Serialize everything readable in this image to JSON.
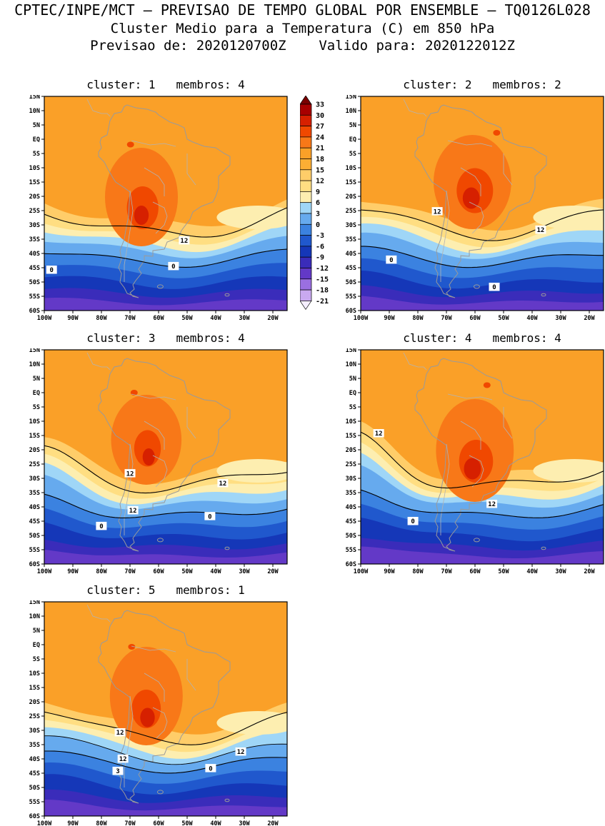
{
  "header": {
    "line1": "CPTEC/INPE/MCT — PREVISAO DE TEMPO GLOBAL POR ENSEMBLE — TQ0126L028",
    "line2": "Cluster Medio para a Temperatura (C) em 850 hPa",
    "line3": "Previsao de: 2020120700Z    Valido para: 2020122012Z"
  },
  "chart_data": {
    "type": "heatmap",
    "subtype": "filled-contour-temperature-maps-ensemble-clusters",
    "title": "Cluster Medio para a Temperatura (C) em 850 hPa",
    "model": "CPTEC/INPE/MCT - PREVISAO DE TEMPO GLOBAL POR ENSEMBLE - TQ0126L028",
    "init_time": "2020120700Z",
    "valid_time": "2020122012Z",
    "units": "C",
    "level": "850 hPa",
    "region": {
      "lon_range": [
        "100W",
        "15W"
      ],
      "lat_range": [
        "15N",
        "60S"
      ]
    },
    "lat_ticks": [
      "15N",
      "10N",
      "5N",
      "EQ",
      "5S",
      "10S",
      "15S",
      "20S",
      "25S",
      "30S",
      "35S",
      "40S",
      "45S",
      "50S",
      "55S",
      "60S"
    ],
    "lon_ticks": [
      "100W",
      "90W",
      "80W",
      "70W",
      "60W",
      "50W",
      "40W",
      "30W",
      "20W"
    ],
    "panels": [
      {
        "cluster": 1,
        "membros": 4,
        "title": "cluster: 1   membros: 4",
        "contour_labels": [
          {
            "t": "12",
            "x": 0.576,
            "y": 0.673
          },
          {
            "t": "0",
            "x": 0.03,
            "y": 0.81
          },
          {
            "t": "0",
            "x": 0.532,
            "y": 0.793
          }
        ]
      },
      {
        "cluster": 2,
        "membros": 2,
        "title": "cluster: 2   membros: 2",
        "contour_labels": [
          {
            "t": "12",
            "x": 0.315,
            "y": 0.537
          },
          {
            "t": "12",
            "x": 0.741,
            "y": 0.623
          },
          {
            "t": "0",
            "x": 0.126,
            "y": 0.763
          },
          {
            "t": "0",
            "x": 0.55,
            "y": 0.89
          }
        ]
      },
      {
        "cluster": 3,
        "membros": 4,
        "title": "cluster: 3   membros: 4",
        "contour_labels": [
          {
            "t": "12",
            "x": 0.353,
            "y": 0.577
          },
          {
            "t": "12",
            "x": 0.735,
            "y": 0.623
          },
          {
            "t": "12",
            "x": 0.365,
            "y": 0.75
          },
          {
            "t": "0",
            "x": 0.682,
            "y": 0.777
          },
          {
            "t": "0",
            "x": 0.235,
            "y": 0.823
          }
        ]
      },
      {
        "cluster": 4,
        "membros": 4,
        "title": "cluster: 4   membros: 4",
        "contour_labels": [
          {
            "t": "12",
            "x": 0.074,
            "y": 0.39
          },
          {
            "t": "12",
            "x": 0.54,
            "y": 0.72
          },
          {
            "t": "0",
            "x": 0.215,
            "y": 0.8
          }
        ]
      },
      {
        "cluster": 5,
        "membros": 1,
        "title": "cluster: 5   membros: 1",
        "contour_labels": [
          {
            "t": "12",
            "x": 0.312,
            "y": 0.61
          },
          {
            "t": "12",
            "x": 0.324,
            "y": 0.733
          },
          {
            "t": "12",
            "x": 0.809,
            "y": 0.7
          },
          {
            "t": "3",
            "x": 0.303,
            "y": 0.79
          },
          {
            "t": "0",
            "x": 0.685,
            "y": 0.777
          }
        ]
      }
    ],
    "colorbar": {
      "tick_labels": [
        "33",
        "30",
        "27",
        "24",
        "21",
        "18",
        "15",
        "12",
        "9",
        "6",
        "3",
        "0",
        "-3",
        "-6",
        "-9",
        "-12",
        "-15",
        "-18",
        "-21"
      ],
      "cell_colors": [
        "#a80000",
        "#d62000",
        "#f04800",
        "#f87818",
        "#faa028",
        "#fcae34",
        "#ffcd69",
        "#ffde82",
        "#fdeeb0",
        "#9fd6f7",
        "#66aaee",
        "#3b82e0",
        "#2058cd",
        "#1537b8",
        "#3a2cba",
        "#6339c7",
        "#9a6fe0",
        "#c9a9f0"
      ],
      "above_color": "#7a0000",
      "below_color": "#f4eeff"
    }
  }
}
